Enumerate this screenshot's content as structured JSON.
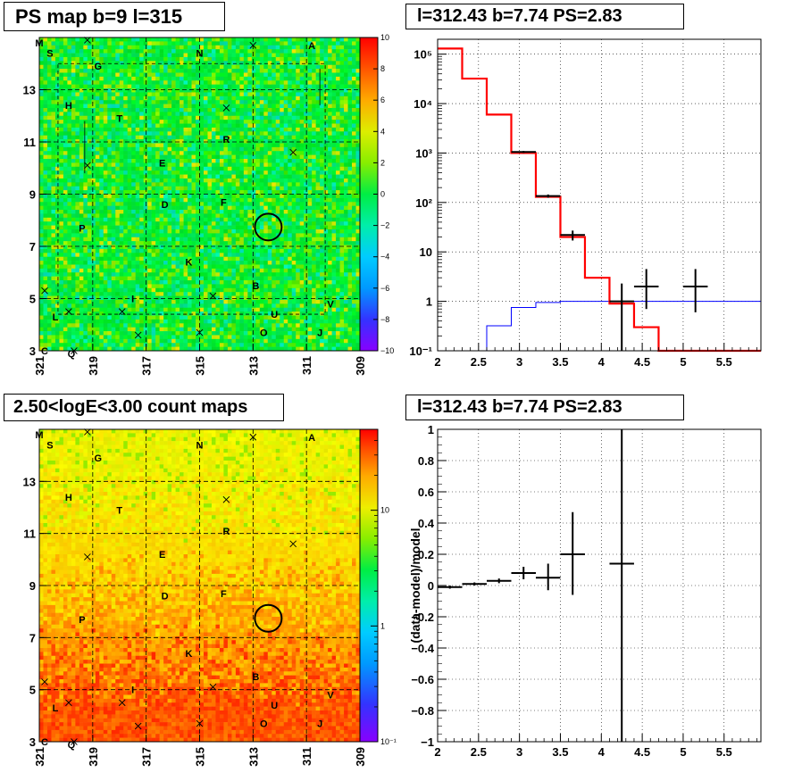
{
  "panels": {
    "top_left_title": "PS map b=9 l=315",
    "top_right_title": "l=312.43 b=7.74 PS=2.83",
    "bottom_left_title": "2.50<logE<3.00 count maps",
    "bottom_right_title": "l=312.43 b=7.74 PS=2.83"
  },
  "chart_data": [
    {
      "id": "ps-map",
      "type": "heatmap",
      "title": "PS map b=9 l=315",
      "x_ticks": [
        "321",
        "319",
        "317",
        "315",
        "313",
        "311",
        "309"
      ],
      "y_ticks": [
        "3",
        "5",
        "7",
        "9",
        "11",
        "13"
      ],
      "xlim": [
        321,
        309
      ],
      "ylim": [
        3,
        15
      ],
      "colorbar_ticks": [
        "10",
        "8",
        "6",
        "4",
        "2",
        "0",
        "−2",
        "−4",
        "−6",
        "−8",
        "−10"
      ],
      "colorbar_range": [
        -10,
        10
      ],
      "source_labels": [
        {
          "label": "M",
          "l": 321.0,
          "b": 14.8
        },
        {
          "label": "S",
          "l": 320.6,
          "b": 14.4
        },
        {
          "label": "A",
          "l": 310.8,
          "b": 14.7
        },
        {
          "label": "G",
          "l": 318.8,
          "b": 13.9
        },
        {
          "label": "N",
          "l": 315.0,
          "b": 14.4
        },
        {
          "label": "H",
          "l": 319.9,
          "b": 12.4
        },
        {
          "label": "T",
          "l": 318.0,
          "b": 11.9
        },
        {
          "label": "R",
          "l": 314.0,
          "b": 11.1
        },
        {
          "label": "E",
          "l": 316.4,
          "b": 10.2
        },
        {
          "label": "D",
          "l": 316.3,
          "b": 8.6
        },
        {
          "label": "F",
          "l": 314.1,
          "b": 8.7
        },
        {
          "label": "P",
          "l": 319.4,
          "b": 7.7
        },
        {
          "label": "K",
          "l": 315.4,
          "b": 6.4
        },
        {
          "label": "B",
          "l": 312.9,
          "b": 5.5
        },
        {
          "label": "I",
          "l": 317.5,
          "b": 5.0
        },
        {
          "label": "V",
          "l": 310.1,
          "b": 4.8
        },
        {
          "label": "L",
          "l": 320.4,
          "b": 4.3
        },
        {
          "label": "U",
          "l": 312.2,
          "b": 4.4
        },
        {
          "label": "O",
          "l": 312.6,
          "b": 3.7
        },
        {
          "label": "J",
          "l": 310.5,
          "b": 3.7
        },
        {
          "label": "Q",
          "l": 319.8,
          "b": 2.9
        },
        {
          "label": "C",
          "l": 320.8,
          "b": 3.0
        }
      ],
      "x_markers": [
        {
          "l": 319.2,
          "b": 14.9
        },
        {
          "l": 313.0,
          "b": 14.7
        },
        {
          "l": 314.0,
          "b": 12.3
        },
        {
          "l": 311.5,
          "b": 10.6
        },
        {
          "l": 319.2,
          "b": 10.1
        },
        {
          "l": 320.8,
          "b": 5.3
        },
        {
          "l": 314.5,
          "b": 5.1
        },
        {
          "l": 317.9,
          "b": 4.5
        },
        {
          "l": 319.9,
          "b": 4.5
        },
        {
          "l": 315.0,
          "b": 3.7
        },
        {
          "l": 317.3,
          "b": 3.6
        },
        {
          "l": 319.7,
          "b": 3.0
        }
      ],
      "circle": {
        "l": 312.43,
        "b": 7.74
      }
    },
    {
      "id": "spectrum",
      "type": "line",
      "title": "l=312.43 b=7.74 PS=2.83",
      "y_log": true,
      "xlim": [
        2,
        5.95
      ],
      "ylim": [
        0.1,
        200000
      ],
      "x_ticks": [
        "2",
        "2.5",
        "3",
        "3.5",
        "4",
        "4.5",
        "5",
        "5.5"
      ],
      "y_ticks": [
        "10⁻¹",
        "1",
        "10",
        "10²",
        "10³",
        "10⁴",
        "10⁵"
      ],
      "grid": true,
      "bin_edges": [
        2.0,
        2.3,
        2.6,
        2.9,
        3.2,
        3.5,
        3.8,
        4.1,
        4.4,
        4.7,
        5.0,
        5.3,
        5.6,
        5.95
      ],
      "model_total": [
        130000,
        32000,
        6000,
        1000,
        130,
        20,
        3,
        0.9,
        0.3,
        0.1,
        0.1,
        0.1,
        0.1
      ],
      "model_ps": [
        0.1,
        0.1,
        0.32,
        0.75,
        0.95,
        1.0,
        1.0,
        1.0,
        1.0,
        1.0,
        1.0,
        1.0,
        1.0
      ],
      "data_points": [
        {
          "x": 3.05,
          "y": 1050,
          "xerr": 0.15,
          "ylo": 1000,
          "yhi": 1100
        },
        {
          "x": 3.35,
          "y": 135,
          "xerr": 0.15,
          "ylo": 125,
          "yhi": 145
        },
        {
          "x": 3.65,
          "y": 22,
          "xerr": 0.15,
          "ylo": 17,
          "yhi": 27
        },
        {
          "x": 4.25,
          "y": 1.0,
          "xerr": 0.15,
          "ylo": 0.1,
          "yhi": 2.3
        },
        {
          "x": 4.55,
          "y": 2.0,
          "xerr": 0.15,
          "ylo": 0.7,
          "yhi": 4.5
        },
        {
          "x": 5.15,
          "y": 2.0,
          "xerr": 0.15,
          "ylo": 0.6,
          "yhi": 4.5
        }
      ],
      "colors": {
        "total": "#ff0000",
        "ps": "#0000ff",
        "data": "#000000"
      }
    },
    {
      "id": "count-map",
      "type": "heatmap",
      "title": "2.50<logE<3.00 count maps",
      "x_ticks": [
        "321",
        "319",
        "317",
        "315",
        "313",
        "311",
        "309"
      ],
      "y_ticks": [
        "3",
        "5",
        "7",
        "9",
        "11",
        "13"
      ],
      "xlim": [
        321,
        309
      ],
      "ylim": [
        3,
        15
      ],
      "colorbar_log": true,
      "colorbar_range": [
        0.1,
        50
      ],
      "colorbar_ticks": [
        "10",
        "1",
        "10⁻¹"
      ]
    },
    {
      "id": "residuals",
      "type": "scatter",
      "title": "l=312.43 b=7.74 PS=2.83",
      "ylabel": "(data-model)/model",
      "xlim": [
        2,
        5.95
      ],
      "ylim": [
        -1,
        1
      ],
      "x_ticks": [
        "2",
        "2.5",
        "3",
        "3.5",
        "4",
        "4.5",
        "5",
        "5.5"
      ],
      "y_ticks": [
        "−1",
        "−0.8",
        "−0.6",
        "−0.4",
        "−0.2",
        "0",
        "0.2",
        "0.4",
        "0.6",
        "0.8",
        "1"
      ],
      "grid": true,
      "points": [
        {
          "x": 2.15,
          "y": -0.01,
          "xerr": 0.15,
          "ylo": -0.02,
          "yhi": 0.0
        },
        {
          "x": 2.45,
          "y": 0.01,
          "xerr": 0.15,
          "ylo": 0.0,
          "yhi": 0.02
        },
        {
          "x": 2.75,
          "y": 0.03,
          "xerr": 0.15,
          "ylo": 0.015,
          "yhi": 0.045
        },
        {
          "x": 3.05,
          "y": 0.08,
          "xerr": 0.15,
          "ylo": 0.04,
          "yhi": 0.12
        },
        {
          "x": 3.35,
          "y": 0.05,
          "xerr": 0.15,
          "ylo": -0.03,
          "yhi": 0.14
        },
        {
          "x": 3.65,
          "y": 0.2,
          "xerr": 0.15,
          "ylo": -0.06,
          "yhi": 0.47
        },
        {
          "x": 4.25,
          "y": 0.14,
          "xerr": 0.15,
          "ylo": -1.0,
          "yhi": 1.0
        }
      ]
    }
  ]
}
